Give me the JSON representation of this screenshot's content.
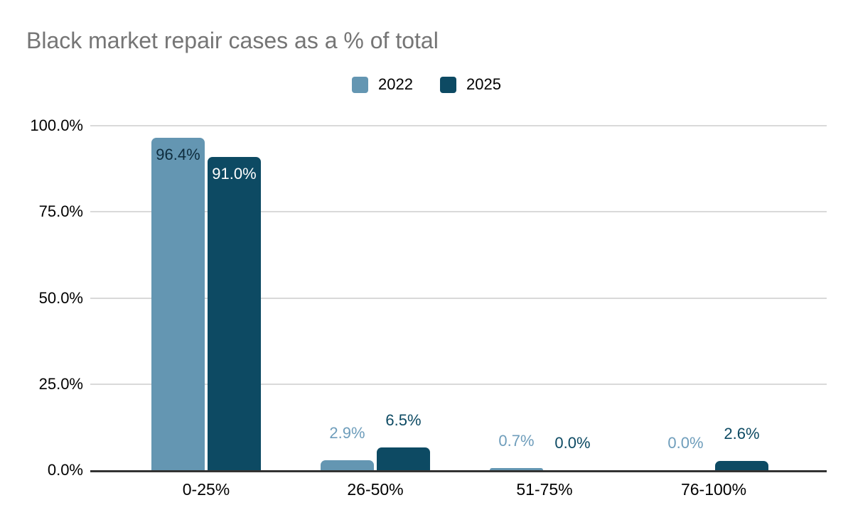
{
  "title": "Black market repair cases as a % of total",
  "colors": {
    "background": "#ffffff",
    "title_text": "#757575",
    "axis_text": "#000000",
    "gridline": "#d9d9d9",
    "baseline": "#333333"
  },
  "chart_data": {
    "type": "bar",
    "title": "Black market repair cases as a % of total",
    "categories": [
      "0-25%",
      "26-50%",
      "51-75%",
      "76-100%"
    ],
    "series": [
      {
        "name": "2022",
        "color": "#6496b2",
        "label_color_outside": "#6e9dbb",
        "label_color_inside": "#0e2c3d",
        "values": [
          96.4,
          2.9,
          0.7,
          0.0
        ],
        "labels": [
          "96.4%",
          "2.9%",
          "0.7%",
          "0.0%"
        ]
      },
      {
        "name": "2025",
        "color": "#0d4a63",
        "label_color_outside": "#0d4a63",
        "label_color_inside": "#ffffff",
        "values": [
          91.0,
          6.5,
          0.0,
          2.6
        ],
        "labels": [
          "91.0%",
          "6.5%",
          "0.0%",
          "2.6%"
        ]
      }
    ],
    "y_axis": {
      "ticks": [
        "100.0%",
        "75.0%",
        "50.0%",
        "25.0%",
        "0.0%"
      ],
      "tick_values": [
        100,
        75,
        50,
        25,
        0
      ],
      "min": 0,
      "max": 100
    },
    "xlabel": "",
    "ylabel": "",
    "legend_position": "top",
    "grid": true
  }
}
